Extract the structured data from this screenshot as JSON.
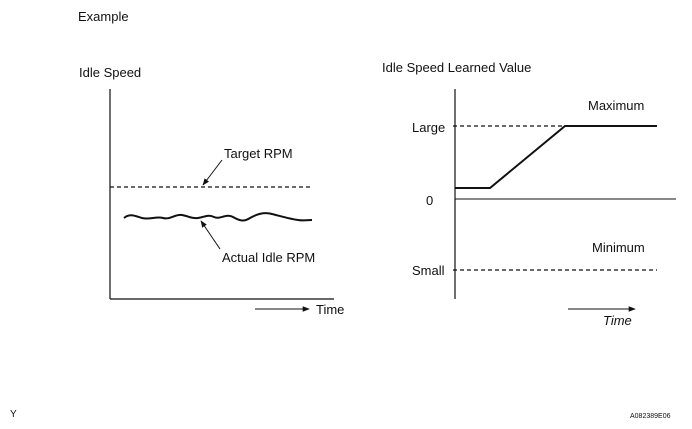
{
  "caption": "Example",
  "left_chart": {
    "title": "Idle Speed",
    "target_label": "Target RPM",
    "actual_label": "Actual Idle RPM",
    "x_label": "Time"
  },
  "right_chart": {
    "title": "Idle Speed Learned Value",
    "y_ticks": [
      "Large",
      "0",
      "Small"
    ],
    "max_label": "Maximum",
    "min_label": "Minimum",
    "x_label": "Time"
  },
  "footer": {
    "left_mark": "Y",
    "figure_code": "A082389E06"
  },
  "colors": {
    "ink": "#111111",
    "background": "#ffffff"
  }
}
